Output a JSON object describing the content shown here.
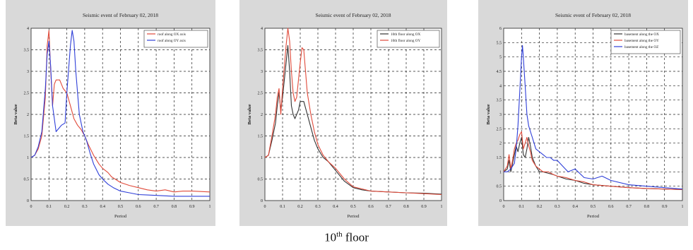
{
  "caption": {
    "main": "10",
    "sup": "th",
    "rest": " floor"
  },
  "colors": {
    "red": "#e04a3a",
    "blue": "#2f3fd8",
    "black": "#333333",
    "frame": "#d9d9d9",
    "plotbg": "#ffffff",
    "grid": "#222222"
  },
  "chart_data": [
    {
      "type": "line",
      "title": "Seismic event of February 02, 2018",
      "xlabel": "Period",
      "ylabel": "Beta value",
      "xlim": [
        0,
        1
      ],
      "ylim": [
        0,
        4
      ],
      "xticks": [
        0,
        0.1,
        0.2,
        0.3,
        0.4,
        0.5,
        0.6,
        0.7,
        0.8,
        0.9,
        1
      ],
      "yticks": [
        0,
        0.5,
        1,
        1.5,
        2,
        2.5,
        3,
        3.5,
        4
      ],
      "xtick_labels": [
        "0",
        "0.1",
        "0.2",
        "0.3",
        "0.4",
        "0.5",
        "0.6",
        "0.7",
        "0.8",
        "0.9",
        "1"
      ],
      "ytick_labels": [
        "0",
        "0.5",
        "1",
        "1.5",
        "2",
        "2.5",
        "3",
        "3.5",
        "4"
      ],
      "grid": true,
      "legend_position": "top-right",
      "series": [
        {
          "name": "roof along OX axis",
          "color": "red",
          "x": [
            0,
            0.02,
            0.04,
            0.06,
            0.08,
            0.09,
            0.1,
            0.11,
            0.12,
            0.13,
            0.14,
            0.16,
            0.18,
            0.2,
            0.22,
            0.24,
            0.26,
            0.28,
            0.3,
            0.32,
            0.35,
            0.38,
            0.4,
            0.43,
            0.45,
            0.5,
            0.55,
            0.6,
            0.65,
            0.7,
            0.75,
            0.8,
            0.85,
            0.9,
            0.95,
            1
          ],
          "y": [
            1,
            1.05,
            1.2,
            1.5,
            2.4,
            3.6,
            3.95,
            3.0,
            2.2,
            2.7,
            2.8,
            2.8,
            2.6,
            2.5,
            2.2,
            1.9,
            1.75,
            1.65,
            1.5,
            1.3,
            1.05,
            0.85,
            0.75,
            0.65,
            0.55,
            0.42,
            0.35,
            0.3,
            0.25,
            0.22,
            0.25,
            0.2,
            0.22,
            0.22,
            0.21,
            0.2
          ]
        },
        {
          "name": "roof along OY axis",
          "color": "blue",
          "x": [
            0,
            0.02,
            0.04,
            0.06,
            0.08,
            0.09,
            0.1,
            0.11,
            0.12,
            0.14,
            0.15,
            0.17,
            0.19,
            0.2,
            0.22,
            0.23,
            0.24,
            0.25,
            0.27,
            0.29,
            0.31,
            0.33,
            0.35,
            0.38,
            0.4,
            0.43,
            0.46,
            0.5,
            0.55,
            0.6,
            0.65,
            0.7,
            0.8,
            0.9,
            1
          ],
          "y": [
            1,
            1.05,
            1.25,
            1.6,
            2.6,
            3.4,
            3.7,
            3.1,
            2.2,
            1.6,
            1.65,
            1.75,
            1.8,
            2.5,
            3.6,
            3.95,
            3.7,
            3.0,
            2.0,
            1.6,
            1.4,
            1.1,
            0.85,
            0.6,
            0.5,
            0.38,
            0.3,
            0.22,
            0.18,
            0.14,
            0.13,
            0.12,
            0.1,
            0.1,
            0.1
          ]
        }
      ]
    },
    {
      "type": "line",
      "title": "Seismic event of February 02, 2018",
      "xlabel": "Period",
      "ylabel": "Beta value",
      "xlim": [
        0,
        1
      ],
      "ylim": [
        0,
        4
      ],
      "xticks": [
        0,
        0.1,
        0.2,
        0.3,
        0.4,
        0.5,
        0.6,
        0.7,
        0.8,
        0.9,
        1
      ],
      "yticks": [
        0,
        0.5,
        1,
        1.5,
        2,
        2.5,
        3,
        3.5,
        4
      ],
      "xtick_labels": [
        "0",
        "0.1",
        "0.2",
        "0.3",
        "0.4",
        "0.5",
        "0.6",
        "0.7",
        "0.8",
        "0.9",
        "1"
      ],
      "ytick_labels": [
        "0",
        "0.5",
        "1",
        "1.5",
        "2",
        "2.5",
        "3",
        "3.5",
        "4"
      ],
      "grid": true,
      "legend_position": "top-right",
      "series": [
        {
          "name": "10th floor along OX",
          "color": "black",
          "x": [
            0,
            0.02,
            0.04,
            0.06,
            0.07,
            0.08,
            0.09,
            0.1,
            0.11,
            0.12,
            0.13,
            0.14,
            0.15,
            0.16,
            0.17,
            0.18,
            0.19,
            0.2,
            0.22,
            0.24,
            0.26,
            0.28,
            0.3,
            0.33,
            0.36,
            0.4,
            0.45,
            0.5,
            0.55,
            0.6,
            0.7,
            0.8,
            0.9,
            1
          ],
          "y": [
            1,
            1.05,
            1.4,
            1.8,
            2.2,
            2.5,
            2.1,
            2.4,
            2.8,
            3.2,
            3.6,
            3.0,
            2.2,
            2.0,
            1.9,
            2.0,
            2.1,
            2.3,
            2.3,
            2.0,
            1.7,
            1.4,
            1.2,
            1.0,
            0.9,
            0.7,
            0.45,
            0.3,
            0.25,
            0.22,
            0.2,
            0.18,
            0.17,
            0.15
          ]
        },
        {
          "name": "10th floor along OY",
          "color": "red",
          "x": [
            0,
            0.02,
            0.04,
            0.06,
            0.07,
            0.08,
            0.09,
            0.1,
            0.11,
            0.12,
            0.13,
            0.14,
            0.15,
            0.16,
            0.17,
            0.18,
            0.19,
            0.2,
            0.21,
            0.22,
            0.23,
            0.24,
            0.26,
            0.28,
            0.3,
            0.33,
            0.36,
            0.4,
            0.45,
            0.5,
            0.55,
            0.6,
            0.7,
            0.8,
            0.9,
            1
          ],
          "y": [
            1,
            1.05,
            1.5,
            2.0,
            2.4,
            2.6,
            2.0,
            2.6,
            3.1,
            3.6,
            4.0,
            3.7,
            3.0,
            2.5,
            2.3,
            2.4,
            2.8,
            3.2,
            3.55,
            3.5,
            3.0,
            2.5,
            2.0,
            1.6,
            1.3,
            1.05,
            0.9,
            0.75,
            0.5,
            0.32,
            0.27,
            0.22,
            0.2,
            0.18,
            0.16,
            0.14
          ]
        }
      ]
    },
    {
      "type": "line",
      "title": "Seismic event of February 02, 2018",
      "xlabel": "Period",
      "ylabel": "Beta value",
      "xlim": [
        0,
        1
      ],
      "ylim": [
        0,
        6
      ],
      "xticks": [
        0,
        0.1,
        0.2,
        0.3,
        0.4,
        0.5,
        0.6,
        0.7,
        0.8,
        0.9,
        1
      ],
      "yticks": [
        0,
        0.5,
        1,
        1.5,
        2,
        2.5,
        3,
        3.5,
        4,
        4.5,
        5,
        5.5,
        6
      ],
      "xtick_labels": [
        "0",
        "0.1",
        "0.2",
        "0.3",
        "0.4",
        "0.5",
        "0.6",
        "0.7",
        "0.8",
        "0.9",
        "1"
      ],
      "ytick_labels": [
        "0",
        "0.5",
        "1",
        "1.5",
        "2",
        "2.5",
        "3",
        "3.5",
        "4",
        "4.5",
        "5",
        "5.5",
        "6"
      ],
      "grid": true,
      "legend_position": "top-right",
      "series": [
        {
          "name": "basement along the OX",
          "color": "black",
          "x": [
            0,
            0.02,
            0.03,
            0.04,
            0.05,
            0.06,
            0.07,
            0.08,
            0.09,
            0.1,
            0.11,
            0.12,
            0.13,
            0.14,
            0.15,
            0.16,
            0.18,
            0.2,
            0.22,
            0.25,
            0.28,
            0.3,
            0.35,
            0.4,
            0.45,
            0.5,
            0.6,
            0.7,
            0.8,
            0.9,
            1
          ],
          "y": [
            1,
            1.1,
            1.4,
            1.0,
            1.3,
            1.6,
            1.9,
            1.7,
            2.0,
            2.2,
            1.6,
            1.5,
            1.8,
            2.2,
            1.9,
            1.5,
            1.2,
            1.0,
            1.0,
            0.95,
            0.9,
            0.85,
            0.75,
            0.7,
            0.6,
            0.55,
            0.5,
            0.45,
            0.42,
            0.4,
            0.38
          ]
        },
        {
          "name": "basement along the OY",
          "color": "red",
          "x": [
            0,
            0.02,
            0.03,
            0.04,
            0.05,
            0.06,
            0.07,
            0.08,
            0.09,
            0.1,
            0.11,
            0.12,
            0.13,
            0.14,
            0.15,
            0.16,
            0.18,
            0.2,
            0.22,
            0.25,
            0.28,
            0.3,
            0.35,
            0.4,
            0.45,
            0.5,
            0.6,
            0.7,
            0.8,
            0.9,
            1
          ],
          "y": [
            1,
            1.2,
            1.6,
            1.1,
            1.4,
            1.8,
            2.0,
            2.1,
            2.3,
            2.4,
            1.8,
            2.0,
            2.2,
            1.9,
            1.7,
            1.4,
            1.2,
            1.1,
            1.0,
            1.0,
            0.9,
            0.85,
            0.8,
            0.7,
            0.65,
            0.55,
            0.5,
            0.45,
            0.42,
            0.4,
            0.38
          ]
        },
        {
          "name": "basement along the OZ",
          "color": "blue",
          "x": [
            0,
            0.02,
            0.04,
            0.06,
            0.07,
            0.08,
            0.09,
            0.1,
            0.105,
            0.11,
            0.12,
            0.13,
            0.14,
            0.15,
            0.16,
            0.17,
            0.18,
            0.2,
            0.22,
            0.24,
            0.26,
            0.28,
            0.3,
            0.33,
            0.36,
            0.4,
            0.45,
            0.5,
            0.55,
            0.6,
            0.7,
            0.8,
            0.9,
            1
          ],
          "y": [
            1,
            1.0,
            1.1,
            1.3,
            1.8,
            2.6,
            3.8,
            5.0,
            5.4,
            5.0,
            4.0,
            3.0,
            2.6,
            2.4,
            2.2,
            2.0,
            1.8,
            1.7,
            1.6,
            1.5,
            1.5,
            1.4,
            1.4,
            1.2,
            1.0,
            1.1,
            0.8,
            0.75,
            0.85,
            0.7,
            0.55,
            0.5,
            0.45,
            0.4
          ]
        }
      ]
    }
  ]
}
